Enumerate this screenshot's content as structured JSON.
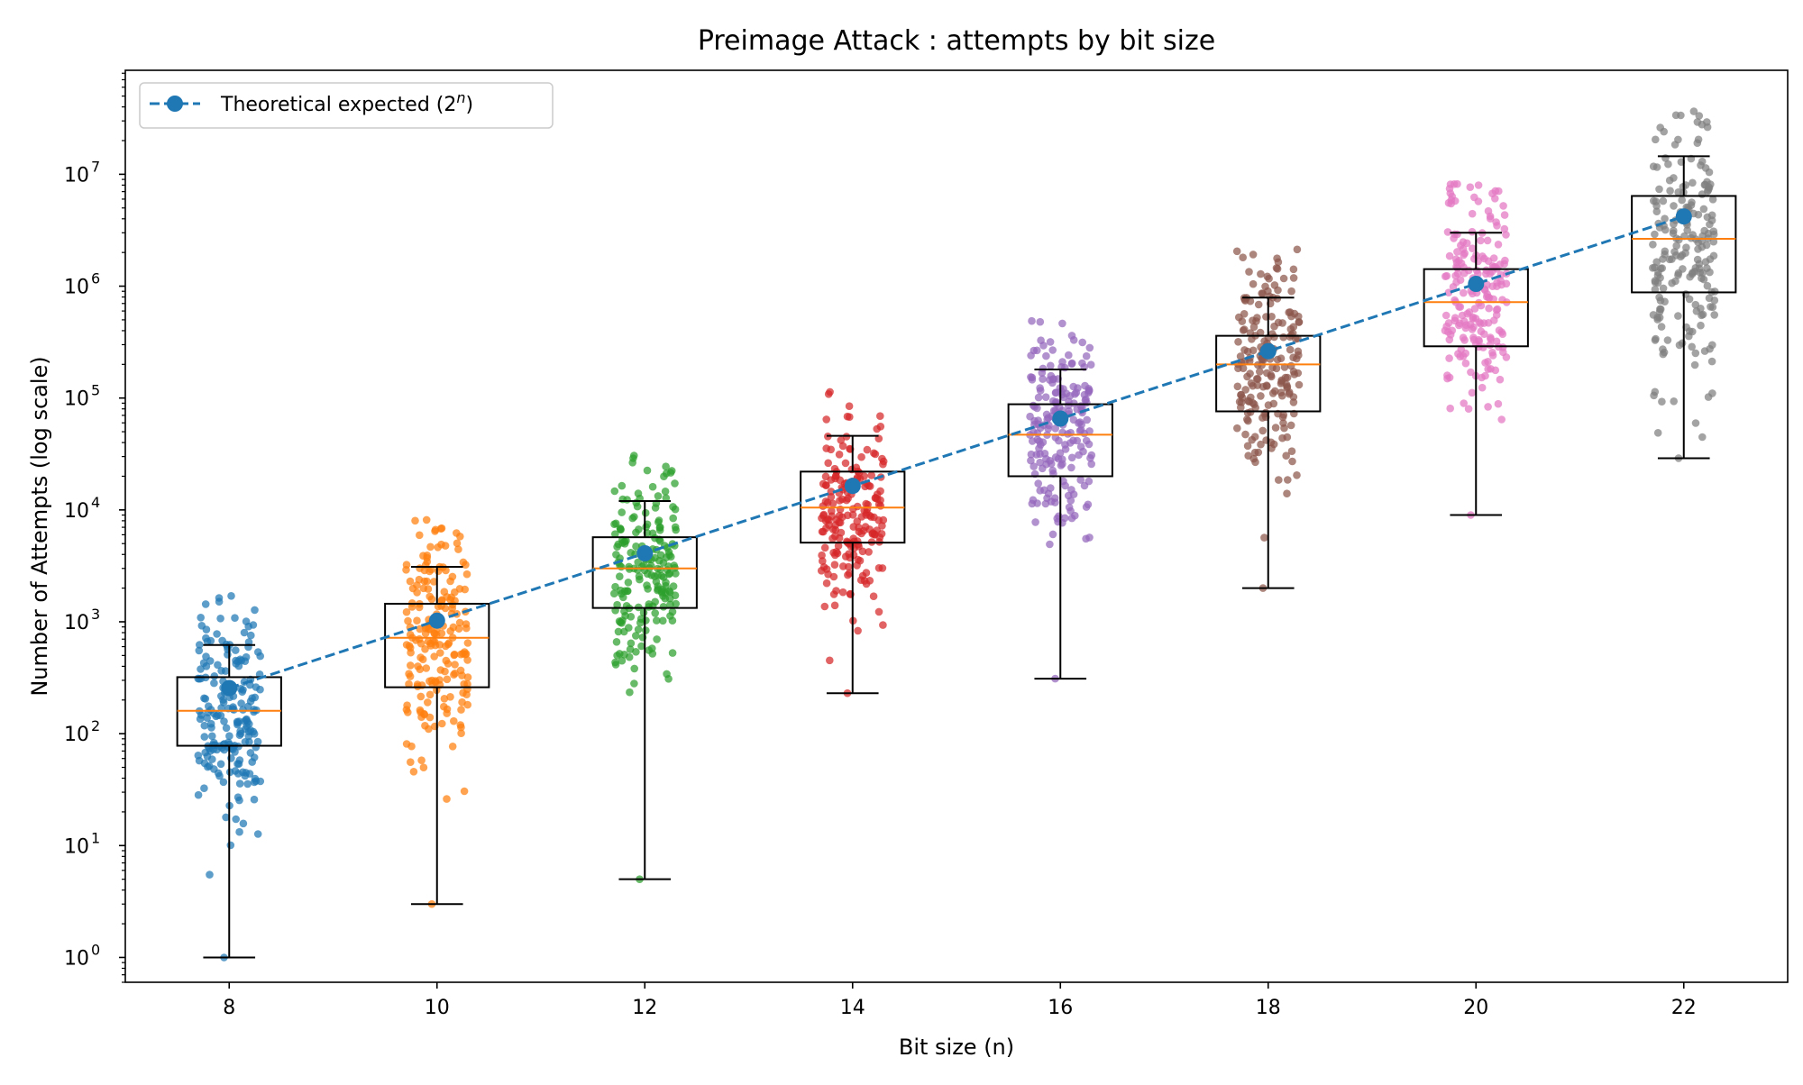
{
  "chart_data": {
    "type": "box",
    "title": "Preimage Attack : attempts by bit size",
    "xlabel": "Bit size (n)",
    "ylabel": "Number of Attempts (log scale)",
    "yscale": "log",
    "ylim": [
      0.6,
      85000000
    ],
    "xlim": [
      7,
      23
    ],
    "grid": false,
    "legend_position": "upper-left",
    "categories": [
      8,
      10,
      12,
      14,
      16,
      18,
      20,
      22
    ],
    "x_tick_labels": [
      "8",
      "10",
      "12",
      "14",
      "16",
      "18",
      "20",
      "22"
    ],
    "y_ticks": [
      {
        "value": 1,
        "base": "10",
        "exp": "0"
      },
      {
        "value": 10,
        "base": "10",
        "exp": "1"
      },
      {
        "value": 100,
        "base": "10",
        "exp": "2"
      },
      {
        "value": 1000,
        "base": "10",
        "exp": "3"
      },
      {
        "value": 10000,
        "base": "10",
        "exp": "4"
      },
      {
        "value": 100000,
        "base": "10",
        "exp": "5"
      },
      {
        "value": 1000000,
        "base": "10",
        "exp": "6"
      },
      {
        "value": 10000000,
        "base": "10",
        "exp": "7"
      }
    ],
    "boxes": [
      {
        "x": 8,
        "color": "#1f77b4",
        "whisker_low": 1,
        "q1": 78,
        "median": 160,
        "q3": 320,
        "whisker_high": 620
      },
      {
        "x": 10,
        "color": "#ff7f0e",
        "whisker_low": 3,
        "q1": 260,
        "median": 720,
        "q3": 1450,
        "whisker_high": 3100
      },
      {
        "x": 12,
        "color": "#2ca02c",
        "whisker_low": 5,
        "q1": 1330,
        "median": 3000,
        "q3": 5700,
        "whisker_high": 12000
      },
      {
        "x": 14,
        "color": "#d62728",
        "whisker_low": 230,
        "q1": 5100,
        "median": 10500,
        "q3": 22000,
        "whisker_high": 46000
      },
      {
        "x": 16,
        "color": "#9467bd",
        "whisker_low": 310,
        "q1": 20000,
        "median": 47000,
        "q3": 88000,
        "whisker_high": 180000
      },
      {
        "x": 18,
        "color": "#8c564b",
        "whisker_low": 2000,
        "q1": 76000,
        "median": 200000,
        "q3": 360000,
        "whisker_high": 790000
      },
      {
        "x": 20,
        "color": "#e377c2",
        "whisker_low": 9000,
        "q1": 290000,
        "median": 720000,
        "q3": 1420000,
        "whisker_high": 3000000
      },
      {
        "x": 22,
        "color": "#7f7f7f",
        "whisker_low": 29000,
        "q1": 880000,
        "median": 2650000,
        "q3": 6400000,
        "whisker_high": 14500000
      }
    ],
    "series": [
      {
        "name_prefix": "Theoretical expected (2",
        "name_sup": "n",
        "name_suffix": ")",
        "color": "#1f77b4",
        "style": "dashed",
        "marker": "circle",
        "x": [
          8,
          10,
          12,
          14,
          16,
          18,
          20,
          22
        ],
        "values": [
          256,
          1024,
          4096,
          16384,
          65536,
          262144,
          1048576,
          4194304
        ]
      }
    ],
    "scatter_points_per_group": 200,
    "median_color": "#ff7f0e"
  }
}
